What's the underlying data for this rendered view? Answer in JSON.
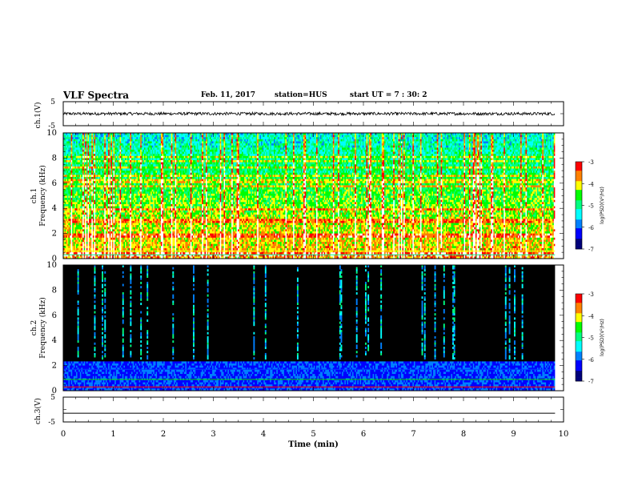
{
  "header": {
    "title": "VLF Spectra",
    "date": "Feb. 11, 2017",
    "station": "station=HUS",
    "start_ut": "start  UT =   7 : 30: 2"
  },
  "chart_data": [
    {
      "type": "line",
      "panel": "ch.1(V)",
      "ylabel": "ch.1(V)",
      "ylim": [
        -5,
        5
      ],
      "yticks": [
        "5",
        "-5"
      ],
      "description_values": {
        "mean": 0,
        "noise_amplitude": 0.6
      },
      "xlim": [
        0,
        10
      ]
    },
    {
      "type": "heatmap",
      "panel": "ch.1",
      "ylabel_top": "ch.1",
      "ylabel": "Frequency (kHz)",
      "ylim": [
        0,
        10
      ],
      "yticks": [
        "0",
        "2",
        "4",
        "6",
        "8",
        "10"
      ],
      "xlim": [
        0,
        9.83
      ],
      "colorbar": {
        "label": "log(PSD)(V²/Hz)",
        "range": [
          -7,
          -3
        ],
        "ticks": [
          "-3",
          "-4",
          "-5",
          "-6",
          "-7"
        ]
      },
      "level": "high"
    },
    {
      "type": "heatmap",
      "panel": "ch.2",
      "ylabel_top": "ch.2",
      "ylabel": "Frequency (kHz)",
      "ylim": [
        0,
        10
      ],
      "yticks": [
        "0",
        "2",
        "4",
        "6",
        "8",
        "10"
      ],
      "xlim": [
        0,
        9.83
      ],
      "colorbar": {
        "label": "log(PSD)(V²/Hz)",
        "range": [
          -7,
          -3
        ],
        "ticks": [
          "-3",
          "-4",
          "-5",
          "-6",
          "-7"
        ]
      },
      "level": "low"
    },
    {
      "type": "line",
      "panel": "ch.3(V)",
      "ylabel": "ch.3(V)",
      "ylim": [
        -5,
        5
      ],
      "yticks": [
        "5",
        "-5"
      ],
      "values_constant": -1.5,
      "xlim": [
        0,
        10
      ]
    }
  ],
  "xaxis": {
    "label": "Time (min)",
    "ticks": [
      "0",
      "1",
      "2",
      "3",
      "4",
      "5",
      "6",
      "7",
      "8",
      "9",
      "10"
    ]
  },
  "colors": {
    "colormap": [
      "#00007a",
      "#0000ff",
      "#0080ff",
      "#00ffff",
      "#00ff80",
      "#00ff00",
      "#ffff00",
      "#ff8000",
      "#ff0000",
      "#ffffff"
    ],
    "trace": "#000000",
    "ch2_red_line": "#ff0000",
    "ch2_green_line": "#00e000"
  }
}
